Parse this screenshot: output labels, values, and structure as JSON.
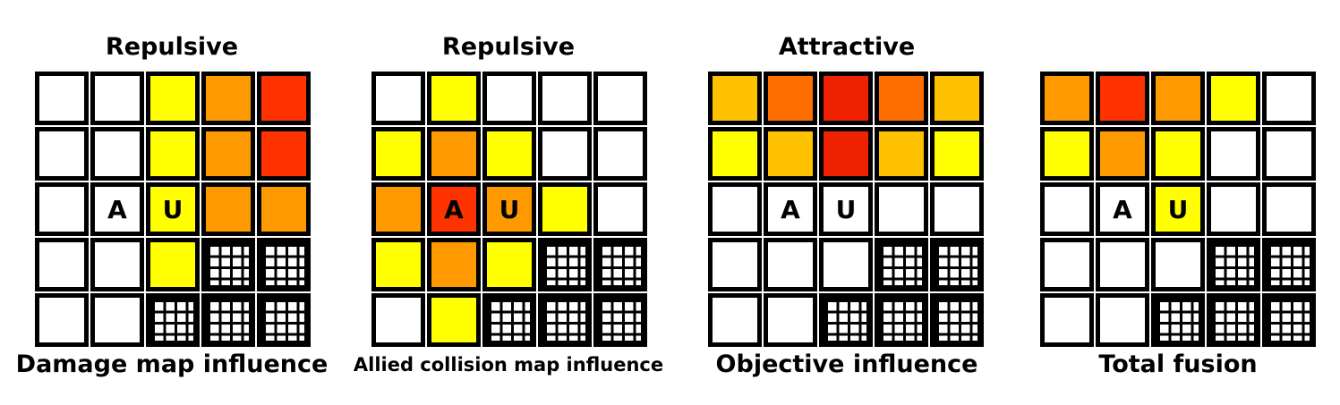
{
  "colors": {
    "empty": "#ffffff",
    "yellow": "#ffff00",
    "amber": "#ffc200",
    "light_orange": "#ff9900",
    "dark_orange": "#ff6f00",
    "red": "#ff3300",
    "deep_red": "#ee2200"
  },
  "panels": [
    {
      "title": "Repulsive",
      "caption": "Damage map influence",
      "grid": [
        [
          "empty",
          "empty",
          "yellow",
          "light_orange",
          "red"
        ],
        [
          "empty",
          "empty",
          "yellow",
          "light_orange",
          "red"
        ],
        [
          "empty",
          "empty",
          "yellow",
          "light_orange",
          "light_orange"
        ],
        [
          "empty",
          "empty",
          "yellow",
          "obstacle",
          "obstacle"
        ],
        [
          "empty",
          "empty",
          "obstacle",
          "obstacle",
          "obstacle"
        ]
      ],
      "markers": [
        {
          "row": 2,
          "col": 1,
          "label": "A"
        },
        {
          "row": 2,
          "col": 2,
          "label": "U"
        }
      ]
    },
    {
      "title": "Repulsive",
      "caption": "Allied collision map influence",
      "grid": [
        [
          "empty",
          "yellow",
          "empty",
          "empty",
          "empty"
        ],
        [
          "yellow",
          "light_orange",
          "yellow",
          "empty",
          "empty"
        ],
        [
          "light_orange",
          "red",
          "light_orange",
          "yellow",
          "empty"
        ],
        [
          "yellow",
          "light_orange",
          "yellow",
          "obstacle",
          "obstacle"
        ],
        [
          "empty",
          "yellow",
          "obstacle",
          "obstacle",
          "obstacle"
        ]
      ],
      "markers": [
        {
          "row": 2,
          "col": 1,
          "label": "A"
        },
        {
          "row": 2,
          "col": 2,
          "label": "U"
        }
      ]
    },
    {
      "title": "Attractive",
      "caption": "Objective influence",
      "grid": [
        [
          "amber",
          "dark_orange",
          "deep_red",
          "dark_orange",
          "amber"
        ],
        [
          "yellow",
          "amber",
          "deep_red",
          "amber",
          "yellow"
        ],
        [
          "empty",
          "empty",
          "empty",
          "empty",
          "empty"
        ],
        [
          "empty",
          "empty",
          "empty",
          "obstacle",
          "obstacle"
        ],
        [
          "empty",
          "empty",
          "obstacle",
          "obstacle",
          "obstacle"
        ]
      ],
      "markers": [
        {
          "row": 2,
          "col": 1,
          "label": "A"
        },
        {
          "row": 2,
          "col": 2,
          "label": "U"
        }
      ]
    },
    {
      "title": "",
      "caption": "Total fusion",
      "grid": [
        [
          "light_orange",
          "red",
          "light_orange",
          "yellow",
          "empty"
        ],
        [
          "yellow",
          "light_orange",
          "yellow",
          "empty",
          "empty"
        ],
        [
          "empty",
          "empty",
          "yellow",
          "empty",
          "empty"
        ],
        [
          "empty",
          "empty",
          "empty",
          "obstacle",
          "obstacle"
        ],
        [
          "empty",
          "empty",
          "obstacle",
          "obstacle",
          "obstacle"
        ]
      ],
      "markers": [
        {
          "row": 2,
          "col": 1,
          "label": "A"
        },
        {
          "row": 2,
          "col": 2,
          "label": "U"
        }
      ]
    }
  ]
}
